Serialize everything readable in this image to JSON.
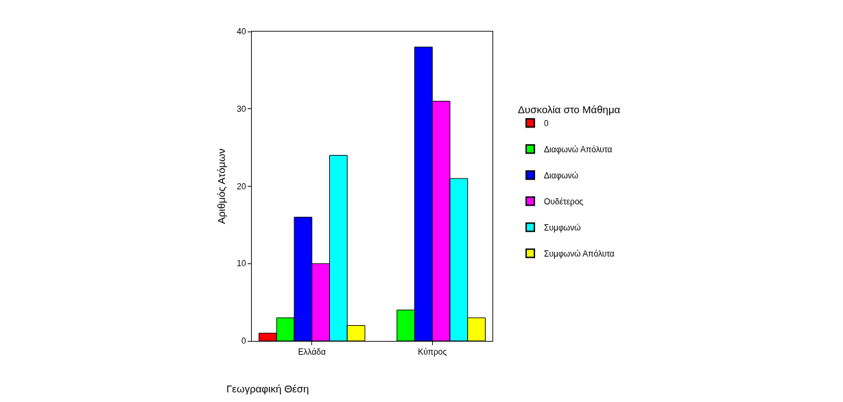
{
  "chart_data": {
    "type": "bar",
    "xlabel": "Γεωγραφική Θέση",
    "ylabel": "Αριθμός Ατόμων",
    "legend_title": "Δυσκολία στο Μάθημα",
    "categories": [
      "Ελλάδα",
      "Κύπρος"
    ],
    "series": [
      {
        "name": "0",
        "color": "#ff0000",
        "values": [
          1,
          null
        ]
      },
      {
        "name": "Διαφωνώ Απόλυτα",
        "color": "#00ff00",
        "values": [
          3,
          4
        ]
      },
      {
        "name": "Διαφωνώ",
        "color": "#0000ff",
        "values": [
          16,
          38
        ]
      },
      {
        "name": "Ουδέτερος",
        "color": "#ff00ff",
        "values": [
          10,
          31
        ]
      },
      {
        "name": "Συμφωνώ",
        "color": "#00ffff",
        "values": [
          24,
          21
        ]
      },
      {
        "name": "Συμφωνώ Απόλυτα",
        "color": "#ffff00",
        "values": [
          2,
          3
        ]
      }
    ],
    "ylim": [
      0,
      40
    ],
    "yticks": [
      0,
      10,
      20,
      30,
      40
    ],
    "legend": "right"
  }
}
